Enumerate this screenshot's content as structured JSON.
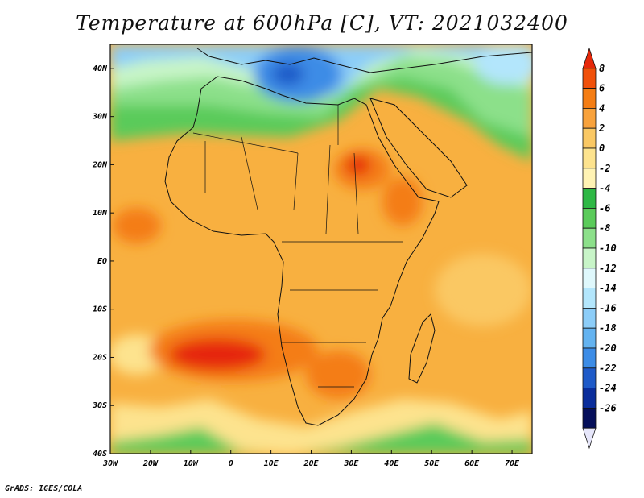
{
  "title": "Temperature at 600hPa [C], VT: 2021032400",
  "credit": "GrADS: IGES/COLA",
  "map": {
    "lon_ticks": [
      "30W",
      "20W",
      "10W",
      "0",
      "10E",
      "20E",
      "30E",
      "40E",
      "50E",
      "60E",
      "70E"
    ],
    "lat_ticks": [
      "40N",
      "30N",
      "20N",
      "10N",
      "EQ",
      "10S",
      "20S",
      "30S",
      "40S"
    ],
    "lon_range": [
      -30,
      75
    ],
    "lat_range": [
      -40,
      45
    ],
    "projection": "latlon"
  },
  "colorbar": {
    "labels": [
      "8",
      "6",
      "4",
      "2",
      "0",
      "-2",
      "-4",
      "-6",
      "-8",
      "-10",
      "-12",
      "-14",
      "-16",
      "-18",
      "-20",
      "-22",
      "-24",
      "-26"
    ],
    "colors": [
      "#e6280a",
      "#f0500a",
      "#f47d14",
      "#f8a23c",
      "#fac864",
      "#fde38e",
      "#fff3b4",
      "#2eb845",
      "#5acb5a",
      "#8ce08a",
      "#c8f5c8",
      "#dff8fc",
      "#b3e6fc",
      "#8ccdf8",
      "#64b3f0",
      "#3c8ce6",
      "#1e5ac8",
      "#0a2d9b",
      "#050f5a",
      "#e6e6fa"
    ]
  },
  "fields": {
    "base_color": "#f8b040",
    "hot_color": "#f47d14",
    "hottest_color": "#e6280a",
    "warm_color": "#fac864",
    "cool_color": "#5acb5a",
    "cold_color": "#3c8ce6",
    "coldest_color": "#1e5ac8",
    "coastline_color": "#111111"
  }
}
